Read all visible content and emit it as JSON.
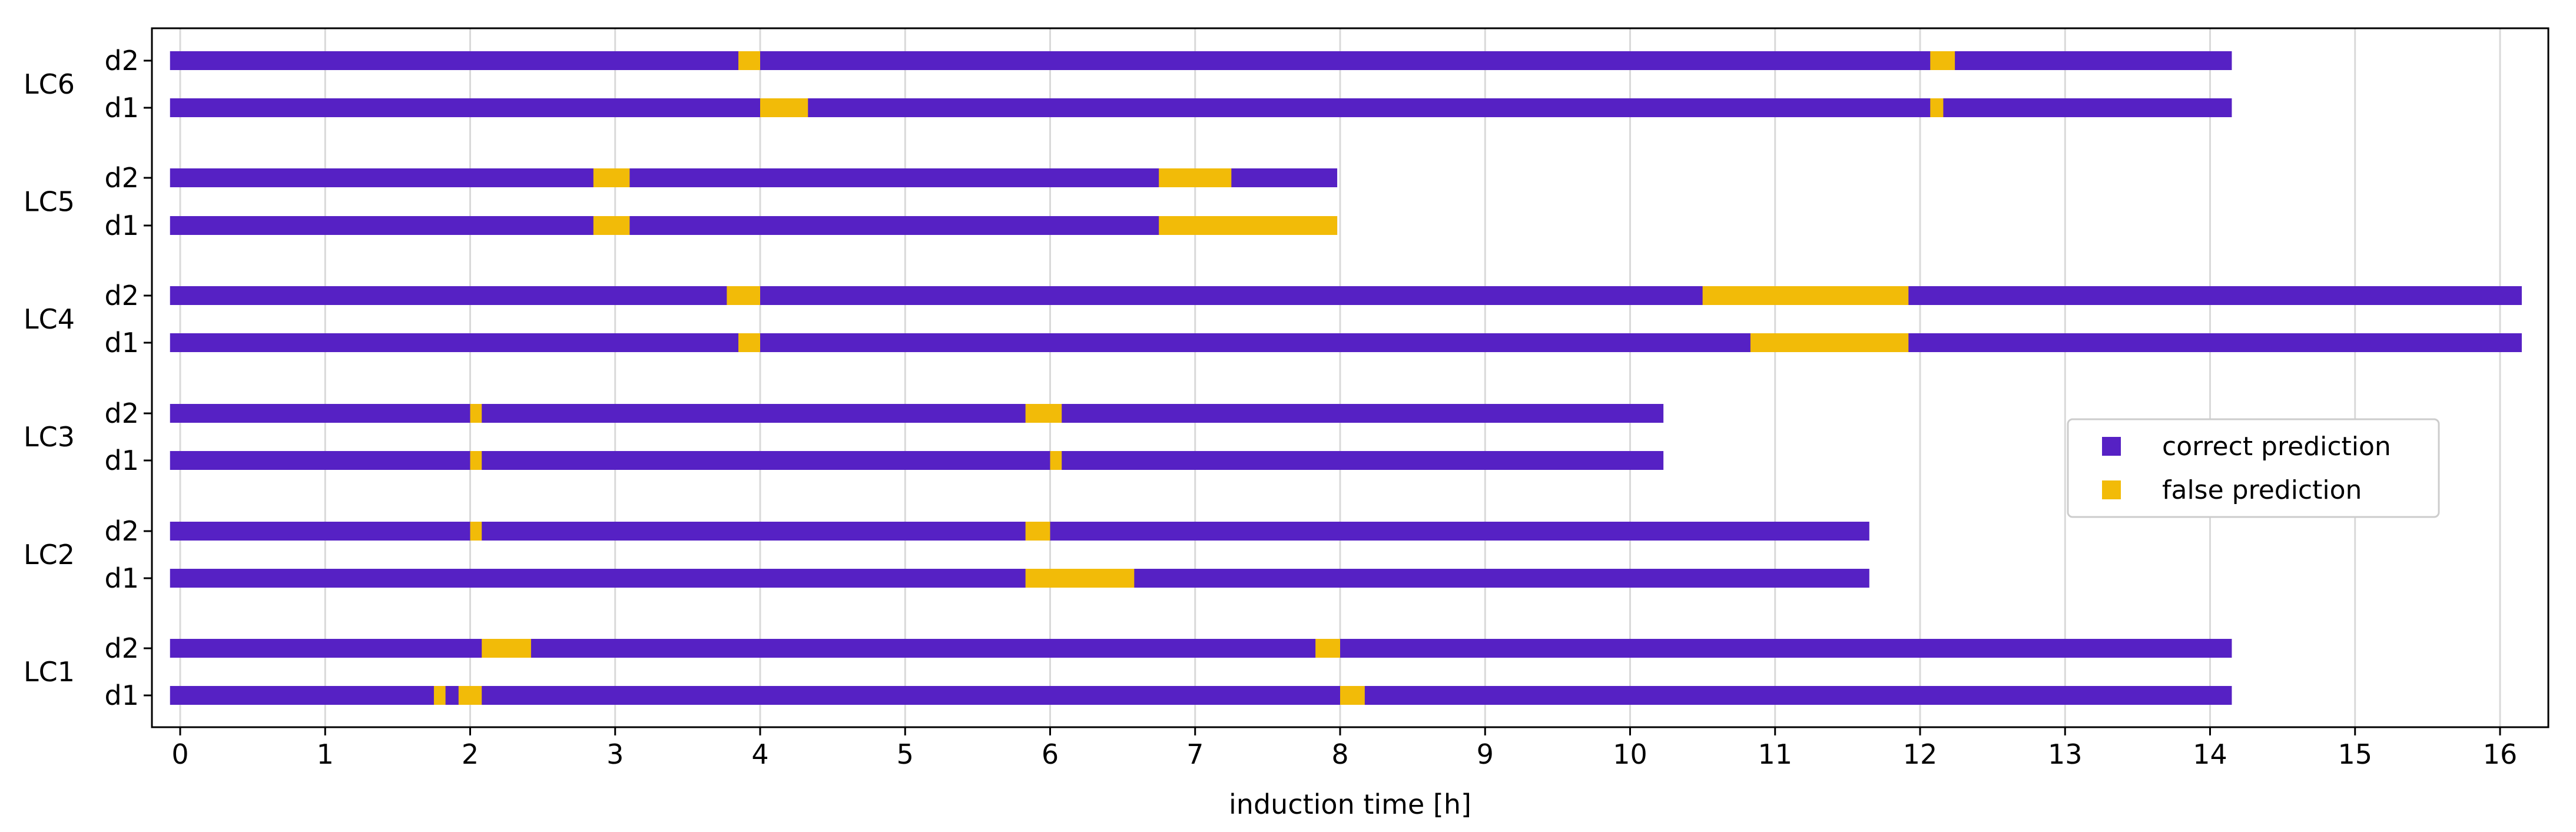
{
  "chart_data": {
    "type": "timeline",
    "xlabel": "induction time [h]",
    "xlim": [
      -0.15,
      16.3
    ],
    "xticks": [
      0,
      1,
      2,
      3,
      4,
      5,
      6,
      7,
      8,
      9,
      10,
      11,
      12,
      13,
      14,
      15,
      16
    ],
    "grid": "vertical",
    "colors": {
      "correct": "#5621c4",
      "false": "#f2bb08"
    },
    "legend": {
      "placement": "center-right",
      "entries": [
        {
          "key": "correct",
          "label": "correct prediction"
        },
        {
          "key": "false",
          "label": "false prediction"
        }
      ]
    },
    "groups": [
      {
        "name": "LC6",
        "rows": [
          {
            "label": "d2",
            "start": -0.07,
            "end": 14.15,
            "false_segments": [
              [
                3.85,
                4.0
              ],
              [
                12.07,
                12.24
              ]
            ]
          },
          {
            "label": "d1",
            "start": -0.07,
            "end": 14.15,
            "false_segments": [
              [
                4.0,
                4.33
              ],
              [
                12.07,
                12.16
              ]
            ]
          }
        ]
      },
      {
        "name": "LC5",
        "rows": [
          {
            "label": "d2",
            "start": -0.07,
            "end": 7.98,
            "false_segments": [
              [
                2.85,
                3.1
              ],
              [
                6.75,
                7.25
              ]
            ]
          },
          {
            "label": "d1",
            "start": -0.07,
            "end": 7.98,
            "false_segments": [
              [
                2.85,
                3.1
              ],
              [
                6.75,
                7.98
              ]
            ]
          }
        ]
      },
      {
        "name": "LC4",
        "rows": [
          {
            "label": "d2",
            "start": -0.07,
            "end": 16.15,
            "false_segments": [
              [
                3.77,
                4.0
              ],
              [
                10.5,
                11.92
              ]
            ]
          },
          {
            "label": "d1",
            "start": -0.07,
            "end": 16.15,
            "false_segments": [
              [
                3.85,
                4.0
              ],
              [
                10.83,
                11.92
              ]
            ]
          }
        ]
      },
      {
        "name": "LC3",
        "rows": [
          {
            "label": "d2",
            "start": -0.07,
            "end": 10.23,
            "false_segments": [
              [
                2.0,
                2.08
              ],
              [
                5.83,
                6.08
              ]
            ]
          },
          {
            "label": "d1",
            "start": -0.07,
            "end": 10.23,
            "false_segments": [
              [
                2.0,
                2.08
              ],
              [
                6.0,
                6.08
              ]
            ]
          }
        ]
      },
      {
        "name": "LC2",
        "rows": [
          {
            "label": "d2",
            "start": -0.07,
            "end": 11.65,
            "false_segments": [
              [
                2.0,
                2.08
              ],
              [
                5.83,
                6.0
              ]
            ]
          },
          {
            "label": "d1",
            "start": -0.07,
            "end": 11.65,
            "false_segments": [
              [
                5.83,
                6.58
              ]
            ]
          }
        ]
      },
      {
        "name": "LC1",
        "rows": [
          {
            "label": "d2",
            "start": -0.07,
            "end": 14.15,
            "false_segments": [
              [
                2.08,
                2.42
              ],
              [
                7.83,
                8.0
              ]
            ]
          },
          {
            "label": "d1",
            "start": -0.07,
            "end": 14.15,
            "false_segments": [
              [
                1.75,
                1.83
              ],
              [
                1.92,
                2.08
              ],
              [
                8.0,
                8.17
              ]
            ]
          }
        ]
      }
    ]
  }
}
